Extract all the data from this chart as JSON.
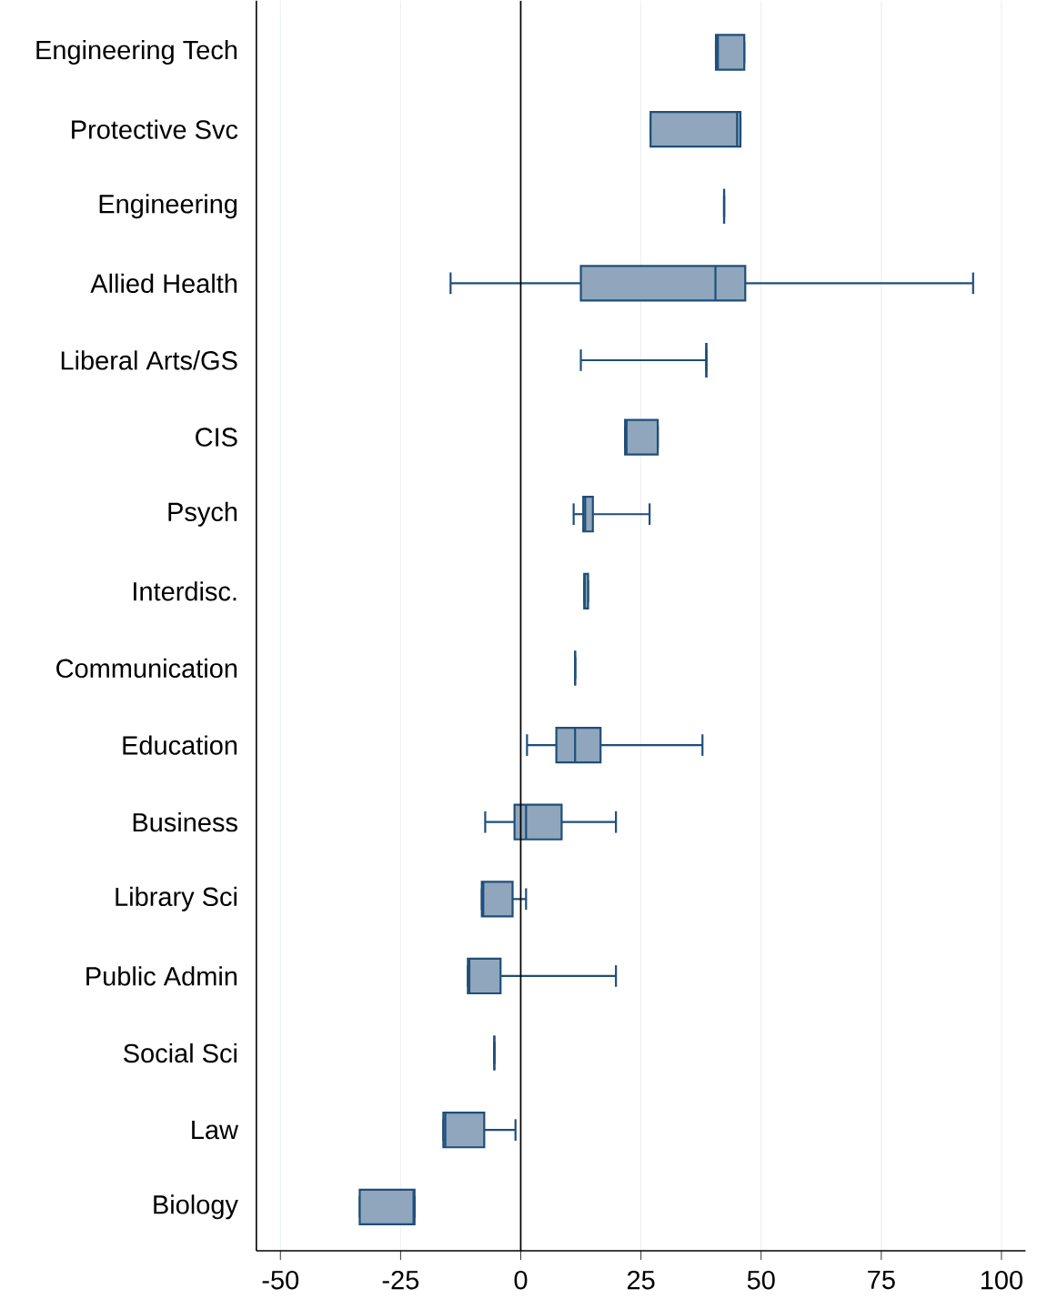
{
  "chart_data": {
    "type": "box",
    "orientation": "horizontal",
    "categories": [
      "Engineering Tech",
      "Protective Svc",
      "Engineering",
      "Allied Health",
      "Liberal Arts/GS",
      "CIS",
      "Psych",
      "Interdisc.",
      "Communication",
      "Education",
      "Business",
      "Library Sci",
      "Public Admin",
      "Social Sci",
      "Law",
      "Biology"
    ],
    "series": [
      {
        "color": "#1f4e79",
        "boxes": [
          {
            "low": 40.6,
            "q1": 40.6,
            "median": 41,
            "q3": 46.5,
            "high": 46.5
          },
          {
            "low": 27,
            "q1": 27,
            "median": 45,
            "q3": 45.7,
            "high": 45.7
          },
          {
            "low": 42.3,
            "q1": 42.3,
            "median": 42.3,
            "q3": 42.3,
            "high": 42.3
          },
          {
            "low": -14.6,
            "q1": 12.5,
            "median": 40.5,
            "q3": 46.7,
            "high": 94.1
          },
          {
            "low": 12.5,
            "q1": 38.6,
            "median": 38.6,
            "q3": 38.6,
            "high": 38.6
          },
          {
            "low": 21.7,
            "q1": 21.7,
            "median": 22,
            "q3": 28.5,
            "high": 28.5
          },
          {
            "low": 11,
            "q1": 13,
            "median": 13.4,
            "q3": 15,
            "high": 26.8
          },
          {
            "low": 13.2,
            "q1": 13.2,
            "median": 13.3,
            "q3": 14,
            "high": 14
          },
          {
            "low": 11.3,
            "q1": 11.3,
            "median": 11.3,
            "q3": 11.3,
            "high": 11.3
          },
          {
            "low": 1.3,
            "q1": 7.4,
            "median": 11.3,
            "q3": 16.6,
            "high": 37.8
          },
          {
            "low": -7.4,
            "q1": -1.3,
            "median": 1.1,
            "q3": 8.5,
            "high": 19.8
          },
          {
            "low": -8.1,
            "q1": -8.1,
            "median": -7.8,
            "q3": -1.7,
            "high": 1.1
          },
          {
            "low": -11,
            "q1": -11,
            "median": -10.7,
            "q3": -4.2,
            "high": 19.8
          },
          {
            "low": -5.5,
            "q1": -5.5,
            "median": -5.5,
            "q3": -5.5,
            "high": -5.5
          },
          {
            "low": -16.1,
            "q1": -16.1,
            "median": -15.7,
            "q3": -7.6,
            "high": -1.1
          },
          {
            "low": -33.5,
            "q1": -33.5,
            "median": -22.3,
            "q3": -22.1,
            "high": -22.1
          }
        ]
      }
    ],
    "xlim": [
      -55,
      105
    ],
    "xticks": [
      -50,
      -25,
      0,
      25,
      50,
      75,
      100
    ],
    "grid": "x",
    "ref_lines": [
      {
        "axis": "x",
        "value": 0,
        "color": "#000000"
      }
    ]
  }
}
